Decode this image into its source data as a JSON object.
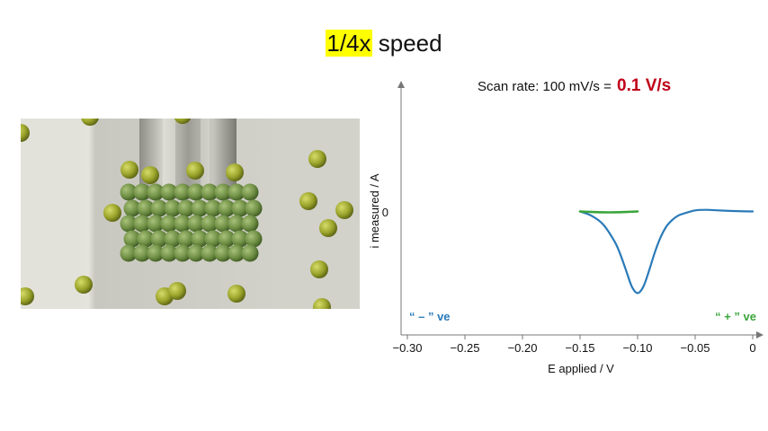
{
  "slide": {
    "speed_number": "1/4x",
    "speed_word": "speed",
    "scan_rate_text": "Scan rate: 100 mV/s =",
    "scan_rate_value": "0.1 V/s",
    "colors": {
      "highlight": "#ffff00",
      "scan_rate_value": "#c00018",
      "blue_curve": "#2a7ab8",
      "green_curve": "#3aa53a",
      "sphere": "#9aa32a"
    }
  },
  "chart_data": {
    "type": "line",
    "xlabel": "E applied / V",
    "ylabel": "i  measured / A",
    "xlim": [
      -0.3,
      0
    ],
    "ylim": [
      -1.15,
      1.2
    ],
    "xticks": [
      -0.3,
      -0.25,
      -0.2,
      -0.15,
      -0.1,
      -0.05,
      0
    ],
    "xtick_labels": [
      "−0.30",
      "−0.25",
      "−0.20",
      "−0.15",
      "−0.10",
      "−0.05",
      "0"
    ],
    "y_zero_label": "0",
    "annotations": {
      "negative": "“ – ” ve",
      "positive": "“ + ” ve"
    },
    "series": [
      {
        "color": "#2a7ab8",
        "x": [
          -0.15,
          -0.14,
          -0.13,
          -0.12,
          -0.115,
          -0.11,
          -0.105,
          -0.1,
          -0.095,
          -0.09,
          -0.085,
          -0.08,
          -0.075,
          -0.07,
          -0.065,
          -0.06,
          -0.05,
          -0.04,
          -0.03,
          -0.02,
          -0.01,
          0
        ],
        "y": [
          0,
          -0.04,
          -0.12,
          -0.28,
          -0.4,
          -0.55,
          -0.7,
          -0.76,
          -0.7,
          -0.55,
          -0.38,
          -0.24,
          -0.14,
          -0.08,
          -0.04,
          -0.02,
          0.01,
          0.015,
          0.01,
          0.005,
          0.002,
          0
        ]
      },
      {
        "color": "#3aa53a",
        "x": [
          -0.15,
          -0.14,
          -0.13,
          -0.12,
          -0.11,
          -0.1
        ],
        "y": [
          0,
          -0.005,
          -0.008,
          -0.008,
          -0.005,
          0
        ]
      }
    ]
  }
}
